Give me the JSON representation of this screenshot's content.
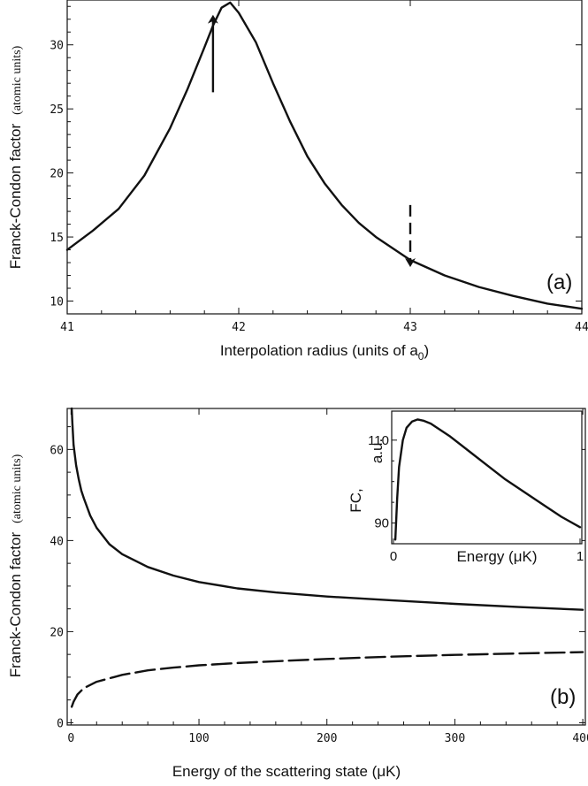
{
  "chart_data": [
    {
      "id": "a",
      "type": "line",
      "panel_label": "(a)",
      "xlabel_main": "Interpolation radius  (units of a",
      "xlabel_sub": "0",
      "xlabel_close": ")",
      "ylabel_main": "Franck-Condon factor",
      "ylabel_units": "(atomic units)",
      "xlim": [
        41,
        44
      ],
      "ylim": [
        9,
        33.5
      ],
      "xticks": [
        "41",
        "42",
        "43",
        "44"
      ],
      "yticks": [
        "10",
        "15",
        "20",
        "25",
        "30"
      ],
      "series": [
        {
          "name": "Franck-Condon factor vs interpolation radius",
          "style": "solid",
          "x": [
            41.0,
            41.15,
            41.3,
            41.45,
            41.6,
            41.7,
            41.8,
            41.85,
            41.9,
            41.95,
            42.0,
            42.1,
            42.2,
            42.3,
            42.4,
            42.5,
            42.6,
            42.7,
            42.8,
            42.9,
            43.0,
            43.2,
            43.4,
            43.6,
            43.8,
            44.0
          ],
          "y": [
            14.0,
            15.5,
            17.2,
            19.8,
            23.5,
            26.5,
            29.8,
            31.5,
            32.9,
            33.3,
            32.5,
            30.2,
            27.0,
            24.0,
            21.3,
            19.2,
            17.5,
            16.1,
            15.0,
            14.1,
            13.2,
            12.0,
            11.1,
            10.4,
            9.8,
            9.4
          ]
        }
      ],
      "annotations": [
        {
          "name": "solid-arrow",
          "style": "solid",
          "x": 41.85,
          "y_from": 26.3,
          "y_to": 32.0
        },
        {
          "name": "dashed-arrow",
          "style": "dashed",
          "x": 43.0,
          "y_from": 17.5,
          "y_to": 13.0
        }
      ]
    },
    {
      "id": "b",
      "type": "line",
      "panel_label": "(b)",
      "xlabel_main": "Energy of the scattering state (",
      "xlabel_unit": "μK",
      "xlabel_close": ")",
      "ylabel_main": "Franck-Condon factor",
      "ylabel_units": "(atomic units)",
      "xlim": [
        -3,
        402
      ],
      "ylim": [
        -0.5,
        69
      ],
      "xticks": [
        "0",
        "100",
        "200",
        "300",
        "400"
      ],
      "yticks": [
        "0",
        "20",
        "40",
        "60"
      ],
      "series": [
        {
          "name": "upper solid curve",
          "style": "solid",
          "x": [
            0.5,
            1,
            2,
            4,
            6,
            8,
            10,
            15,
            20,
            30,
            40,
            60,
            80,
            100,
            130,
            160,
            200,
            250,
            300,
            350,
            400
          ],
          "y": [
            69,
            66,
            61,
            56.5,
            53.5,
            51,
            49.3,
            45.5,
            42.8,
            39.2,
            37.0,
            34.2,
            32.3,
            30.9,
            29.5,
            28.6,
            27.7,
            26.9,
            26.1,
            25.4,
            24.8
          ]
        },
        {
          "name": "lower dashed curve",
          "style": "dashed",
          "x": [
            0.5,
            2,
            5,
            10,
            20,
            40,
            60,
            80,
            100,
            130,
            160,
            200,
            250,
            300,
            350,
            400
          ],
          "y": [
            3.5,
            4.6,
            6.2,
            7.6,
            9.0,
            10.5,
            11.5,
            12.1,
            12.6,
            13.1,
            13.5,
            14.0,
            14.5,
            14.9,
            15.2,
            15.5
          ]
        }
      ],
      "inset": {
        "type": "line",
        "xlabel_main": "Energy (",
        "xlabel_unit": "μK",
        "xlabel_close": ")",
        "ylabel_fc": "FC,",
        "ylabel_units": "a.u.",
        "xlim": [
          0,
          1
        ],
        "ylim": [
          85,
          117
        ],
        "xticks": [
          "0",
          "1"
        ],
        "yticks": [
          "90",
          "110"
        ],
        "series": [
          {
            "name": "inset curve",
            "style": "solid",
            "x": [
              0.01,
              0.02,
              0.03,
              0.05,
              0.07,
              0.1,
              0.13,
              0.16,
              0.2,
              0.3,
              0.4,
              0.5,
              0.6,
              0.7,
              0.8,
              0.9,
              1.0
            ],
            "y": [
              86.0,
              96.0,
              103.5,
              110.0,
              113.0,
              114.5,
              115.0,
              114.7,
              114.0,
              111.0,
              107.5,
              104.0,
              100.5,
              97.5,
              94.5,
              91.5,
              89.0
            ]
          }
        ]
      }
    }
  ]
}
